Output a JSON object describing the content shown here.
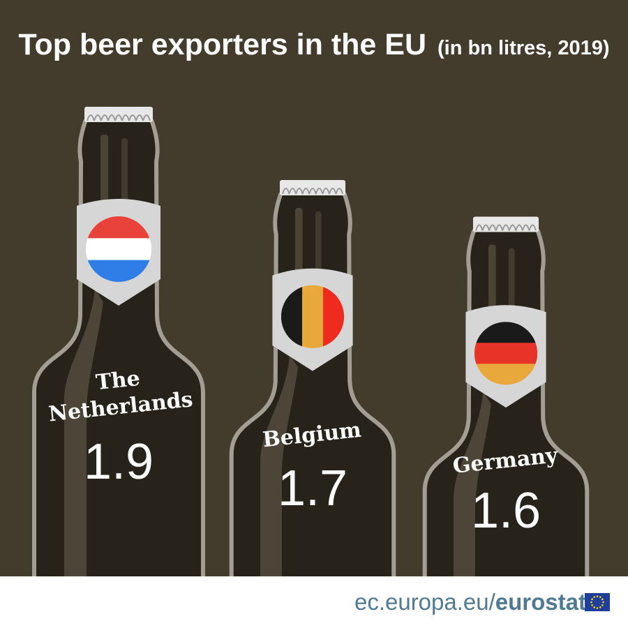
{
  "title": "Top beer exporters in the EU",
  "subtitle": "(in bn litres, 2019)",
  "colors": {
    "background": "#433c2d",
    "bottle": "#28231a",
    "outline": "#a39e94",
    "highlight": "#5a5242",
    "label": "#d6d6d6",
    "cap": "#e8e8e8"
  },
  "chart_data": {
    "type": "bar",
    "title": "Top beer exporters in the EU",
    "subtitle": "(in bn litres, 2019)",
    "categories": [
      "The Netherlands",
      "Belgium",
      "Germany"
    ],
    "values": [
      1.9,
      1.7,
      1.6
    ],
    "value_labels": [
      "1.9",
      "1.7",
      "1.6"
    ],
    "unit": "bn litres",
    "year": "2019",
    "flags": [
      {
        "country": "The Netherlands",
        "stripes": "horizontal",
        "colors": [
          "#e8423a",
          "#ffffff",
          "#2f7ee8"
        ]
      },
      {
        "country": "Belgium",
        "stripes": "vertical",
        "colors": [
          "#1a1a1a",
          "#e9a83b",
          "#ee2b1e"
        ]
      },
      {
        "country": "Germany",
        "stripes": "horizontal",
        "colors": [
          "#1a1a1a",
          "#e83328",
          "#e9a83b"
        ]
      }
    ]
  },
  "footer": {
    "domain": "ec.europa.eu/",
    "brand": "eurostat",
    "logo_icon": "eu-flag-icon"
  }
}
